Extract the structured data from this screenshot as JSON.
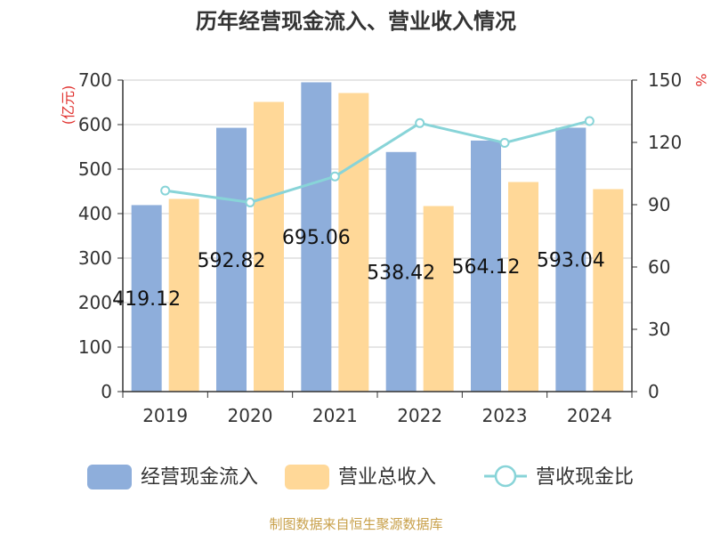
{
  "chart_data": {
    "type": "bar",
    "title": "历年经营现金流入、营业收入情况",
    "categories": [
      "2019",
      "2020",
      "2021",
      "2022",
      "2023",
      "2024"
    ],
    "series": [
      {
        "name": "经营现金流入",
        "kind": "bar",
        "axis": "left",
        "color": "#8eaedb",
        "values": [
          419.12,
          592.82,
          695.06,
          538.42,
          564.12,
          593.04
        ]
      },
      {
        "name": "营业总收入",
        "kind": "bar",
        "axis": "left",
        "color": "#ffd898",
        "values": [
          433,
          651,
          671,
          417,
          471,
          455
        ]
      },
      {
        "name": "营收现金比",
        "kind": "line",
        "axis": "right",
        "color": "#88d4d8",
        "values": [
          96.8,
          91.1,
          103.6,
          129.3,
          119.8,
          130.3
        ]
      }
    ],
    "data_labels": [
      "419.12",
      "592.82",
      "695.06",
      "538.42",
      "564.12",
      "593.04"
    ],
    "y_left": {
      "unit": "(亿元)",
      "ylim": [
        0,
        700
      ],
      "ticks": [
        "0",
        "100",
        "200",
        "300",
        "400",
        "500",
        "600",
        "700"
      ]
    },
    "y_right": {
      "unit": "%",
      "ylim": [
        0,
        150
      ],
      "ticks": [
        "0",
        "30",
        "60",
        "90",
        "120",
        "150"
      ]
    },
    "grid": true,
    "legend_position": "bottom"
  },
  "source": "制图数据来自恒生聚源数据库"
}
